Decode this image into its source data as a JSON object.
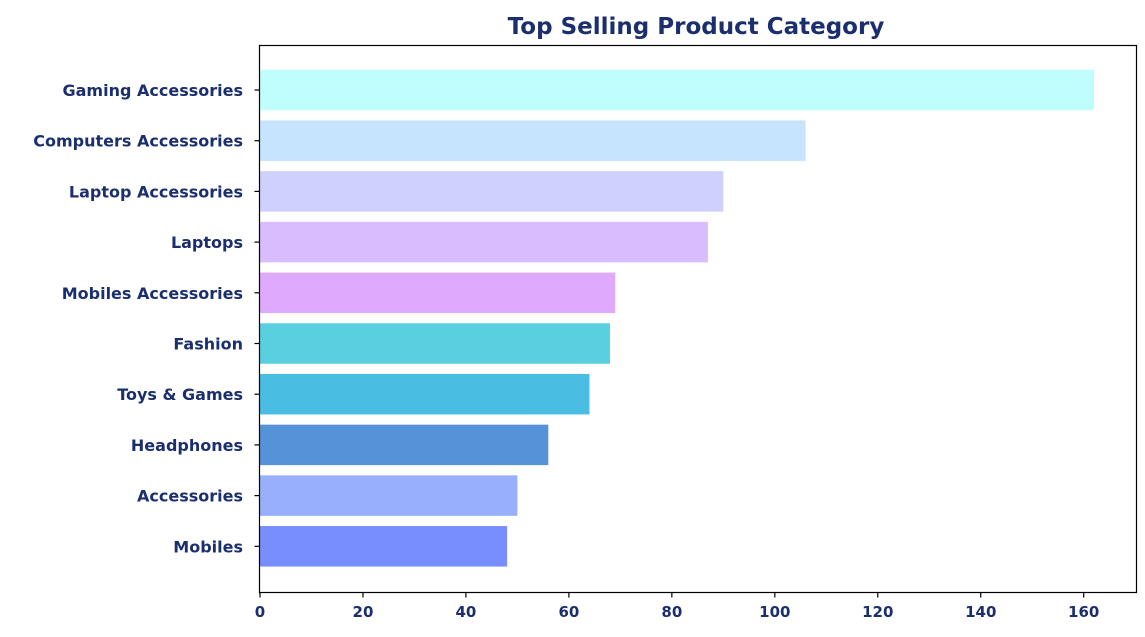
{
  "chart_data": {
    "type": "bar",
    "orientation": "horizontal",
    "title": "Top Selling Product Category",
    "xlabel": "",
    "ylabel": "",
    "categories": [
      "Gaming Accessories",
      "Computers Accessories",
      "Laptop Accessories",
      "Laptops",
      "Mobiles Accessories",
      "Fashion",
      "Toys & Games",
      "Headphones",
      "Accessories",
      "Mobiles"
    ],
    "values": [
      162,
      106,
      90,
      87,
      69,
      68,
      64,
      56,
      50,
      48
    ],
    "colors": [
      "#c0fdfd",
      "#c6e4fd",
      "#d0d0ff",
      "#d8bcfd",
      "#dfa9fd",
      "#59cfe0",
      "#4abee2",
      "#5592d8",
      "#98affe",
      "#788dfe"
    ],
    "xlim": [
      0,
      170
    ],
    "xticks": [
      0,
      20,
      40,
      60,
      80,
      100,
      120,
      140,
      160
    ],
    "grid": false,
    "legend": "none",
    "text_color": "#1b2e6e"
  }
}
